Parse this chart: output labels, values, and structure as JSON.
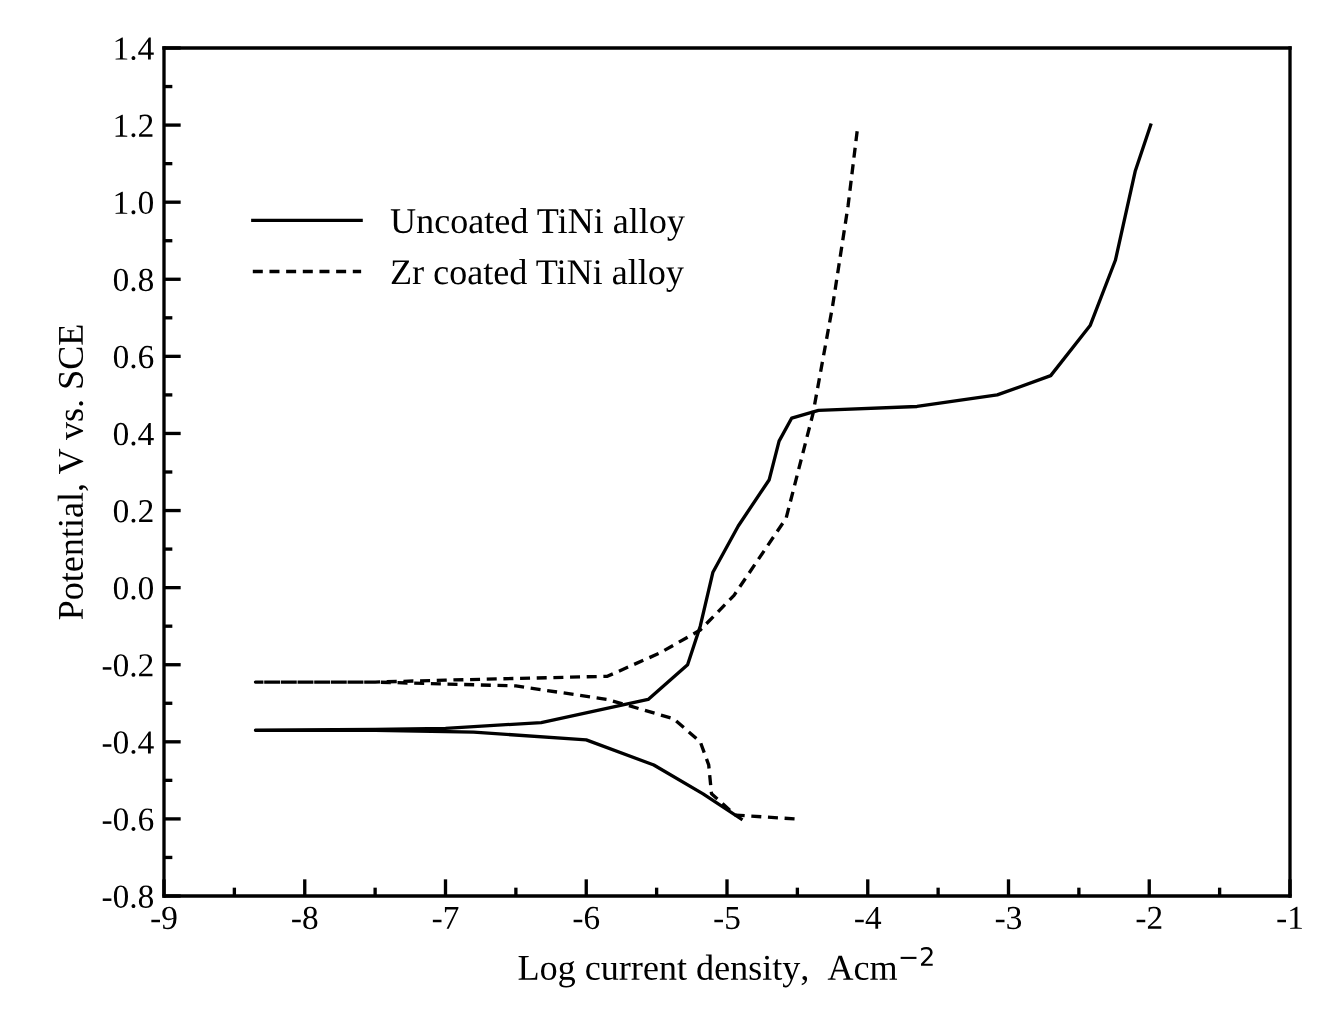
{
  "chart_data": {
    "type": "line",
    "xlabel": "Log current density,  Acm$^{−2}$",
    "ylabel": "Potential, V vs. SCE",
    "xlim": [
      -9,
      -1
    ],
    "xticks": [
      -9,
      -8,
      -7,
      -6,
      -5,
      -4,
      -3,
      -2,
      -1
    ],
    "ylim": [
      -0.8,
      1.4
    ],
    "yticks": [
      -0.8,
      -0.6,
      -0.4,
      -0.2,
      {
        "value": 0,
        "label": "0.0"
      },
      0.2,
      0.4,
      0.6,
      0.8,
      {
        "value": 1,
        "label": "1.0"
      },
      1.2,
      1.4
    ],
    "legend": "top left",
    "grid": false,
    "series": [
      {
        "name": "Uncoated TiNi alloy",
        "color": "#000000",
        "line_style": "solid",
        "x": [
          -4.9,
          -5.17,
          -5.52,
          -6.0,
          -6.8,
          -7.5,
          -8.35,
          -7.5,
          -7.0,
          -6.32,
          -5.56,
          -5.28,
          -5.19,
          -5.1,
          -4.92,
          -4.7,
          -4.63,
          -4.54,
          -4.35,
          -3.65,
          -3.08,
          -2.7,
          -2.42,
          -2.24,
          -2.1,
          -1.99
        ],
        "values": [
          -0.6,
          -0.535,
          -0.46,
          -0.395,
          -0.375,
          -0.37,
          -0.37,
          -0.368,
          -0.365,
          -0.35,
          -0.29,
          -0.2,
          -0.1,
          0.04,
          0.16,
          0.28,
          0.38,
          0.44,
          0.46,
          0.47,
          0.5,
          0.55,
          0.68,
          0.85,
          1.08,
          1.2
        ]
      },
      {
        "name": "Zr coated TiNi alloy",
        "color": "#000000",
        "line_style": "dashed",
        "x": [
          -4.52,
          -4.94,
          -5.11,
          -5.13,
          -5.19,
          -5.38,
          -5.85,
          -6.5,
          -7.5,
          -8.35,
          -7.5,
          -7.0,
          -5.85,
          -5.48,
          -5.19,
          -4.95,
          -4.58,
          -4.39,
          -4.25,
          -4.14,
          -4.07
        ],
        "values": [
          -0.6,
          -0.59,
          -0.535,
          -0.46,
          -0.4,
          -0.34,
          -0.29,
          -0.255,
          -0.245,
          -0.245,
          -0.245,
          -0.24,
          -0.23,
          -0.17,
          -0.11,
          -0.02,
          0.18,
          0.45,
          0.73,
          0.99,
          1.2
        ]
      }
    ]
  }
}
